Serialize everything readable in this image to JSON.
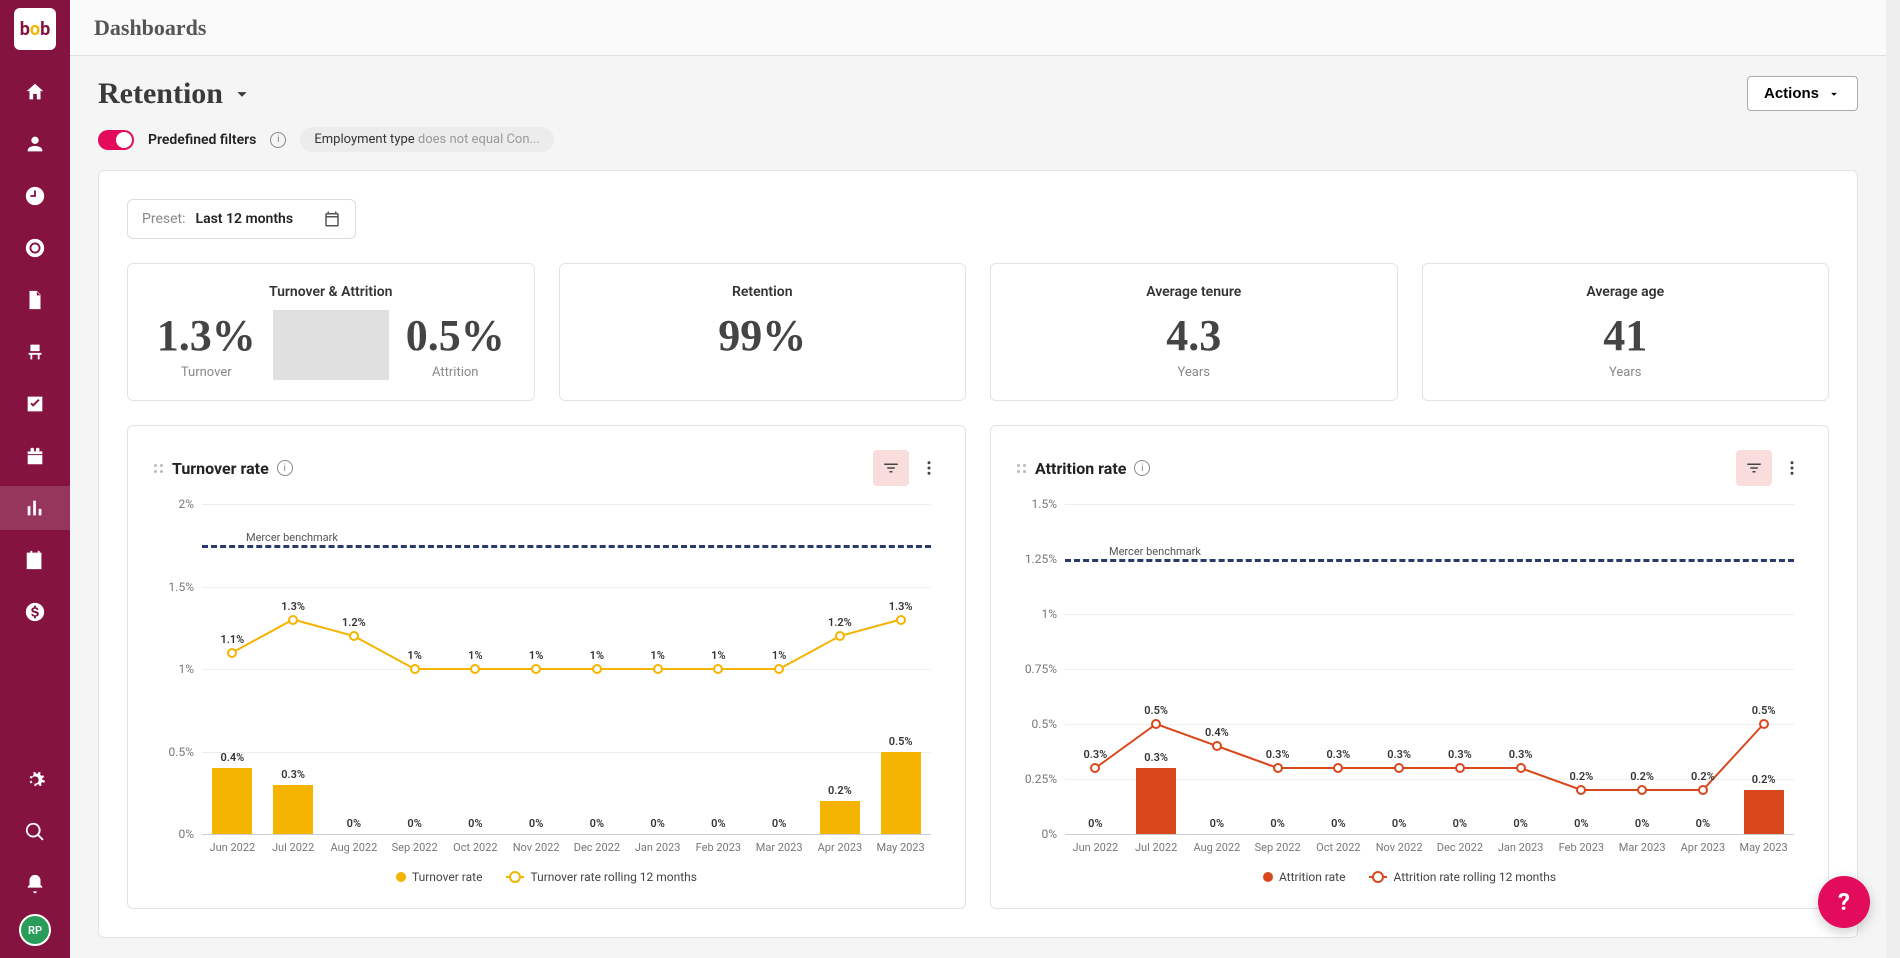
{
  "app": {
    "logo_text": "bob"
  },
  "topbar": {
    "title": "Dashboards"
  },
  "page": {
    "title": "Retention"
  },
  "actions": {
    "label": "Actions"
  },
  "filters": {
    "toggle_on": true,
    "label": "Predefined filters",
    "chip_field": "Employment type",
    "chip_op": "does not equal Con..."
  },
  "preset": {
    "label": "Preset:",
    "value": "Last 12 months"
  },
  "kpis": {
    "turnover_attrition": {
      "title": "Turnover & Attrition",
      "left_value": "1.3%",
      "left_label": "Turnover",
      "right_value": "0.5%",
      "right_label": "Attrition"
    },
    "retention": {
      "title": "Retention",
      "value": "99%"
    },
    "tenure": {
      "title": "Average tenure",
      "value": "4.3",
      "sub": "Years"
    },
    "age": {
      "title": "Average age",
      "value": "41",
      "sub": "Years"
    }
  },
  "chart1": {
    "title": "Turnover rate",
    "type": "bar+line",
    "categories": [
      "Jun 2022",
      "Jul 2022",
      "Aug 2022",
      "Sep 2022",
      "Oct 2022",
      "Nov 2022",
      "Dec 2022",
      "Jan 2023",
      "Feb 2023",
      "Mar 2023",
      "Apr 2023",
      "May 2023"
    ],
    "bar_values": [
      0.4,
      0.3,
      0,
      0,
      0,
      0,
      0,
      0,
      0,
      0,
      0.2,
      0.5
    ],
    "bar_labels": [
      "0.4%",
      "0.3%",
      "0%",
      "0%",
      "0%",
      "0%",
      "0%",
      "0%",
      "0%",
      "0%",
      "0.2%",
      "0.5%"
    ],
    "line_values": [
      1.1,
      1.3,
      1.2,
      1,
      1,
      1,
      1,
      1,
      1,
      1,
      1.2,
      1.3
    ],
    "line_labels": [
      "1.1%",
      "1.3%",
      "1.2%",
      "1%",
      "1%",
      "1%",
      "1%",
      "1%",
      "1%",
      "1%",
      "1.2%",
      "1.3%"
    ],
    "benchmark_value": 1.75,
    "benchmark_label": "Mercer benchmark",
    "y_ticks": [
      0,
      0.5,
      1,
      1.5,
      2
    ],
    "y_tick_labels": [
      "0%",
      "0.5%",
      "1%",
      "1.5%",
      "2%"
    ],
    "ylim": [
      0,
      2
    ],
    "bar_color": "#f4b400",
    "line_color": "#f4b400",
    "benchmark_color": "#2b3a6b",
    "legend_bar": "Turnover rate",
    "legend_line": "Turnover rate rolling 12 months"
  },
  "chart2": {
    "title": "Attrition rate",
    "type": "bar+line",
    "categories": [
      "Jun 2022",
      "Jul 2022",
      "Aug 2022",
      "Sep 2022",
      "Oct 2022",
      "Nov 2022",
      "Dec 2022",
      "Jan 2023",
      "Feb 2023",
      "Mar 2023",
      "Apr 2023",
      "May 2023"
    ],
    "bar_values": [
      0,
      0.3,
      0,
      0,
      0,
      0,
      0,
      0,
      0,
      0,
      0,
      0.2
    ],
    "bar_labels": [
      "0%",
      "0.3%",
      "0%",
      "0%",
      "0%",
      "0%",
      "0%",
      "0%",
      "0%",
      "0%",
      "0%",
      "0.2%"
    ],
    "line_values": [
      0.3,
      0.5,
      0.4,
      0.3,
      0.3,
      0.3,
      0.3,
      0.3,
      0.2,
      0.2,
      0.2,
      0.5
    ],
    "line_labels": [
      "0.3%",
      "0.5%",
      "0.4%",
      "0.3%",
      "0.3%",
      "0.3%",
      "0.3%",
      "0.3%",
      "0.2%",
      "0.2%",
      "0.2%",
      "0.5%"
    ],
    "benchmark_value": 1.25,
    "benchmark_label": "Mercer benchmark",
    "y_ticks": [
      0,
      0.25,
      0.5,
      0.75,
      1,
      1.25,
      1.5
    ],
    "y_tick_labels": [
      "0%",
      "0.25%",
      "0.5%",
      "0.75%",
      "1%",
      "1.25%",
      "1.5%"
    ],
    "ylim": [
      0,
      1.5
    ],
    "bar_color": "#d9481c",
    "line_color": "#d9481c",
    "benchmark_color": "#2b3a6b",
    "legend_bar": "Attrition rate",
    "legend_line": "Attrition rate rolling 12 months"
  },
  "help": {
    "glyph": "?"
  },
  "avatar": {
    "initials": "RP"
  },
  "nav_icons": [
    "home",
    "person",
    "clock",
    "lifebuoy",
    "document",
    "chair",
    "checkbox",
    "gift",
    "bar-chart",
    "calendar",
    "dollar"
  ],
  "nav_bottom_icons": [
    "gear",
    "search",
    "bell"
  ]
}
